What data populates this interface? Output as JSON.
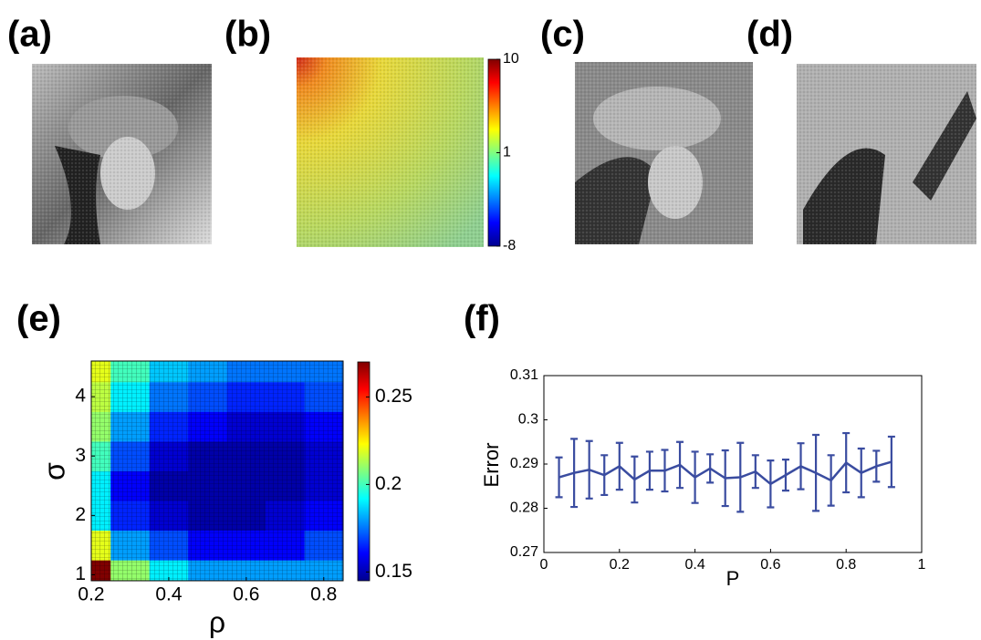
{
  "panel_labels": [
    "(a)",
    "(b)",
    "(c)",
    "(d)",
    "(e)",
    "(f)"
  ],
  "chart_data": [
    {
      "type": "colorbar",
      "ylim": [
        -8,
        10
      ],
      "yticks": [
        10,
        1,
        -8
      ]
    },
    {
      "type": "heatmap",
      "xlabel": "ρ",
      "ylabel": "σ",
      "x": [
        0.2,
        0.3,
        0.4,
        0.5,
        0.6,
        0.7,
        0.8
      ],
      "y": [
        1,
        1.5,
        2,
        2.5,
        3,
        3.5,
        4,
        4.5
      ],
      "z": [
        [
          0.27,
          0.21,
          0.19,
          0.18,
          0.18,
          0.18,
          0.18
        ],
        [
          0.22,
          0.18,
          0.17,
          0.16,
          0.16,
          0.16,
          0.17
        ],
        [
          0.19,
          0.165,
          0.155,
          0.15,
          0.15,
          0.155,
          0.16
        ],
        [
          0.19,
          0.16,
          0.15,
          0.15,
          0.15,
          0.15,
          0.155
        ],
        [
          0.2,
          0.17,
          0.155,
          0.15,
          0.15,
          0.15,
          0.155
        ],
        [
          0.21,
          0.18,
          0.165,
          0.16,
          0.155,
          0.155,
          0.16
        ],
        [
          0.215,
          0.19,
          0.175,
          0.17,
          0.165,
          0.165,
          0.17
        ],
        [
          0.22,
          0.2,
          0.185,
          0.18,
          0.175,
          0.175,
          0.175
        ]
      ],
      "xlim": [
        0.2,
        0.85
      ],
      "xticks": [
        0.2,
        0.4,
        0.6,
        0.8
      ],
      "ylim": [
        0.9,
        4.6
      ],
      "yticks": [
        1,
        2,
        3,
        4
      ],
      "clim": [
        0.145,
        0.27
      ],
      "cticks": [
        0.15,
        0.2,
        0.25
      ]
    },
    {
      "type": "errorbar",
      "xlabel": "P",
      "ylabel": "Error",
      "color": "#3a4ca0",
      "x": [
        0.04,
        0.08,
        0.12,
        0.16,
        0.2,
        0.24,
        0.28,
        0.32,
        0.36,
        0.4,
        0.44,
        0.48,
        0.52,
        0.56,
        0.6,
        0.64,
        0.68,
        0.72,
        0.76,
        0.8,
        0.84,
        0.88,
        0.92
      ],
      "values": [
        0.287,
        0.288,
        0.2887,
        0.2875,
        0.2895,
        0.2865,
        0.2885,
        0.2885,
        0.2898,
        0.287,
        0.289,
        0.2868,
        0.287,
        0.2883,
        0.2855,
        0.2875,
        0.2895,
        0.288,
        0.2863,
        0.2903,
        0.288,
        0.2895,
        0.2905
      ],
      "errors": [
        0.0045,
        0.0077,
        0.0065,
        0.0045,
        0.0053,
        0.0052,
        0.0043,
        0.0047,
        0.0052,
        0.0058,
        0.0032,
        0.0063,
        0.0078,
        0.0037,
        0.0053,
        0.0035,
        0.0052,
        0.0086,
        0.0057,
        0.0067,
        0.0055,
        0.0035,
        0.0057
      ],
      "xlim": [
        0,
        1
      ],
      "xticks": [
        0,
        0.2,
        0.4,
        0.6,
        0.8,
        1
      ],
      "ylim": [
        0.27,
        0.31
      ],
      "yticks": [
        0.27,
        0.28,
        0.29,
        0.3,
        0.31
      ]
    }
  ]
}
